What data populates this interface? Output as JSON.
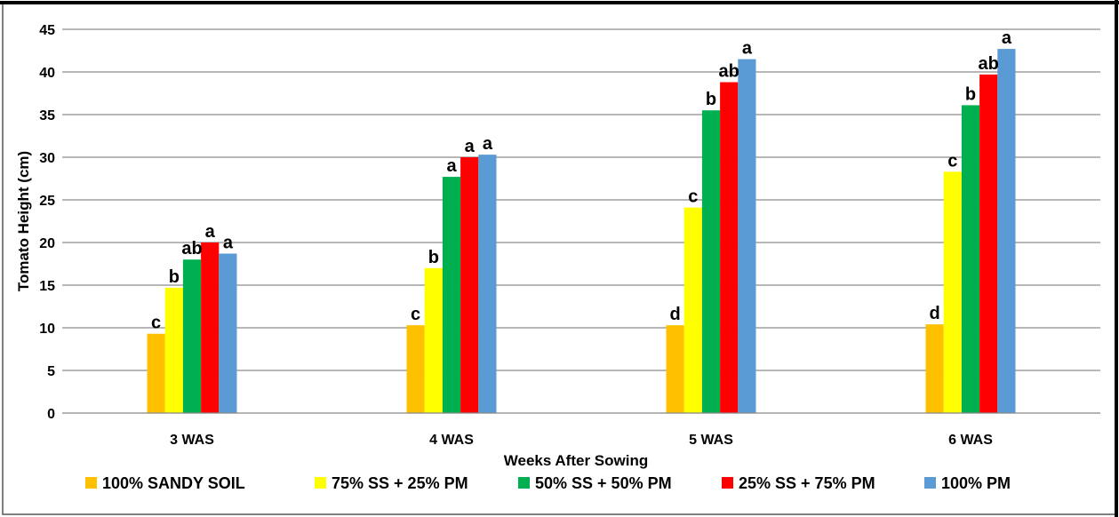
{
  "chart_data": {
    "type": "bar",
    "title": "",
    "xlabel": "Weeks After Sowing",
    "ylabel": "Tomato Height (cm)",
    "ylim": [
      0,
      45
    ],
    "yticks": [
      0,
      5,
      10,
      15,
      20,
      25,
      30,
      35,
      40,
      45
    ],
    "grid": true,
    "legend_position": "bottom",
    "categories": [
      "3 WAS",
      "4 WAS",
      "5 WAS",
      "6 WAS"
    ],
    "series": [
      {
        "name": "100% SANDY SOIL",
        "color": "#FFC000",
        "values": [
          9.3,
          10.3,
          10.3,
          10.4
        ],
        "labels": [
          "c",
          "c",
          "d",
          "d"
        ]
      },
      {
        "name": "75% SS + 25% PM",
        "color": "#FFFF00",
        "values": [
          14.7,
          17.0,
          24.1,
          28.3
        ],
        "labels": [
          "b",
          "b",
          "c",
          "c"
        ]
      },
      {
        "name": "50% SS + 50% PM",
        "color": "#00B050",
        "values": [
          18.0,
          27.7,
          35.5,
          36.1
        ],
        "labels": [
          "ab",
          "a",
          "b",
          "b"
        ]
      },
      {
        "name": "25% SS + 75% PM",
        "color": "#FF0000",
        "values": [
          20.0,
          30.0,
          38.8,
          39.7
        ],
        "labels": [
          "a",
          "a",
          "ab",
          "ab"
        ]
      },
      {
        "name": "100% PM",
        "color": "#5B9BD5",
        "values": [
          18.7,
          30.3,
          41.5,
          42.7
        ],
        "labels": [
          "a",
          "a",
          "a",
          "a"
        ]
      }
    ]
  }
}
